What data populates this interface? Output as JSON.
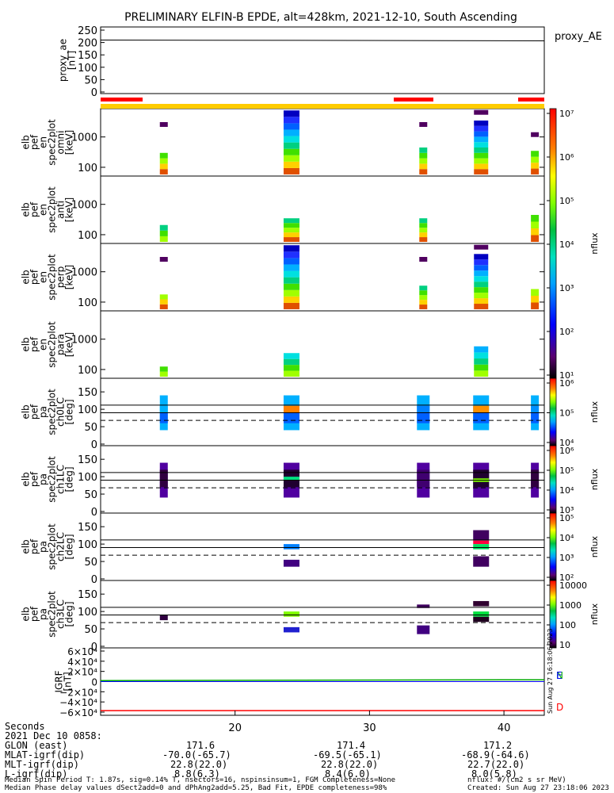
{
  "title": "PRELIMINARY ELFIN-B EPDE, alt=428km, 2021-12-10, South Ascending",
  "created": "Created: Sun Aug 27 23:18:06 2023",
  "side_stamp": "Sun Aug 27 16:18:06 2023",
  "nflux_units": "nflux: #/(cm2 s sr MeV)",
  "median_spin": "Median Spin Period T: 1.87s, sig=0.14% T, nsectors=16, nspinsinsum=1, FGM Completeness=None",
  "median_phase": "Median Phase delay values dSect2add=0 and dPhAng2add=5.25, Bad Fit, EPDE completeness=98%",
  "axis_labels": {
    "seconds": "Seconds",
    "date": "2021 Dec 10 0858:",
    "glon": "GLON (east)",
    "mlat": "MLAT-igrf(dip)",
    "mlt": "MLT-igrf(dip)",
    "l": "L-igrf(dip)"
  },
  "x_ticks": [
    "20",
    "30",
    "40"
  ],
  "ephem": {
    "glon": [
      "171.6",
      "171.4",
      "171.2"
    ],
    "mlat": [
      "-70.0(-65.7)",
      "-69.5(-65.1)",
      "-68.9(-64.6)"
    ],
    "mlt": [
      "22.8(22.0)",
      "22.8(22.0)",
      "22.7(22.0)"
    ],
    "l": [
      "8.8(6.3)",
      "8.4(6.0)",
      "8.0(5.8)"
    ]
  },
  "panels": {
    "proxy": {
      "ylabel": [
        "proxy_ae",
        "[nT]"
      ],
      "side_label": "proxy_AE",
      "ticks": [
        "250",
        "200",
        "150",
        "100",
        "50",
        "0"
      ]
    },
    "omni": {
      "ylabel": [
        "elb",
        "pef",
        "en",
        "spec2plot",
        "omni",
        "[keV]"
      ]
    },
    "anti": {
      "ylabel": [
        "elb",
        "pef",
        "en",
        "spec2plot",
        "anti",
        "[keV]"
      ]
    },
    "perp": {
      "ylabel": [
        "elb",
        "pef",
        "en",
        "spec2plot",
        "perp",
        "[keV]"
      ]
    },
    "para": {
      "ylabel": [
        "elb",
        "pef",
        "en",
        "spec2plot",
        "para",
        "[keV]"
      ]
    },
    "ch0": {
      "ylabel": [
        "elb",
        "pef",
        "pa",
        "spec2plot",
        "ch0LC",
        "[deg]"
      ]
    },
    "ch1": {
      "ylabel": [
        "elb",
        "pef",
        "pa",
        "spec2plot",
        "ch1LC",
        "[deg]"
      ]
    },
    "ch2": {
      "ylabel": [
        "elb",
        "pef",
        "pa",
        "spec2plot",
        "ch2LC",
        "[deg]"
      ]
    },
    "ch3": {
      "ylabel": [
        "elb",
        "pef",
        "pa",
        "spec2plot",
        "ch3LC",
        "[deg]"
      ]
    },
    "igrf": {
      "ylabel": [
        "IGRF",
        "[nT]"
      ],
      "legend": [
        "N",
        "E",
        "D"
      ]
    }
  },
  "energy_ticks": [
    "1000",
    "100"
  ],
  "deg_ticks": [
    "150",
    "100",
    "50",
    "0"
  ],
  "igrf_ticks": [
    "6×10⁴",
    "4×10⁴",
    "2×10⁴",
    "0",
    "−2×10⁴",
    "−4×10⁴",
    "−6×10⁴"
  ],
  "colorbars": {
    "label": "nflux",
    "energy": [
      "10⁷",
      "10⁶",
      "10⁵",
      "10⁴",
      "10³",
      "10²",
      "10¹"
    ],
    "ch0": [
      "10⁶",
      "10⁵",
      "10⁴"
    ],
    "ch1": [
      "10⁶",
      "10⁵",
      "10⁴",
      "10³"
    ],
    "ch2": [
      "10⁵",
      "10⁴",
      "10³",
      "10²"
    ],
    "ch3": [
      "10000",
      "1000",
      "100",
      "10"
    ]
  },
  "colors": {
    "status_red": "#ff0000",
    "status_yellow": "#ffcc00",
    "igrf_n": "#00aa00",
    "igrf_e": "#0000ff",
    "igrf_d": "#ff0000"
  },
  "chart_data": {
    "type": "heatmap",
    "title": "PRELIMINARY ELFIN-B EPDE, alt=428km, 2021-12-10, South Ascending",
    "xlabel": "Seconds",
    "x_range": [
      10,
      43
    ],
    "x_ticks": [
      20,
      30,
      40
    ],
    "proxy_ae": {
      "ylim": [
        0,
        250
      ],
      "units": "nT",
      "value": 210
    },
    "spin_columns_sec": [
      14.7,
      24.2,
      34.0,
      38.3,
      42.3
    ],
    "energy_ylim_keV": [
      60,
      6000
    ],
    "deg_ylim": [
      0,
      180
    ],
    "loss_cone_deg": {
      "solid": [
        112,
        90
      ],
      "dashed": 68
    },
    "igrf_nT": {
      "ylim": [
        -60000,
        60000
      ],
      "N": 2000,
      "E": 0,
      "D": -57000
    }
  }
}
